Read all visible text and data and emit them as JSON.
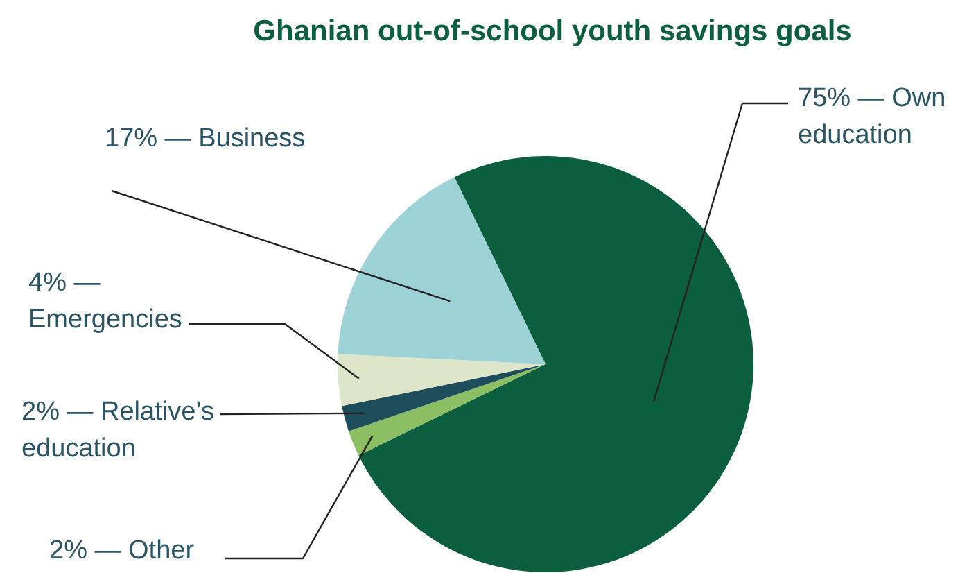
{
  "chart_data": {
    "type": "pie",
    "title": "Ghanian out-of-school youth savings goals",
    "categories": [
      "Own education",
      "Other",
      "Relative’s education",
      "Emergencies",
      "Business"
    ],
    "values": [
      75,
      2,
      2,
      4,
      17
    ],
    "colors": [
      "#0b5e3e",
      "#8cbf63",
      "#1e4d5c",
      "#dde6c9",
      "#9dd2d7"
    ],
    "value_labels": [
      "75% —",
      "2% —",
      "2% —",
      "4% —",
      "17% —"
    ]
  }
}
